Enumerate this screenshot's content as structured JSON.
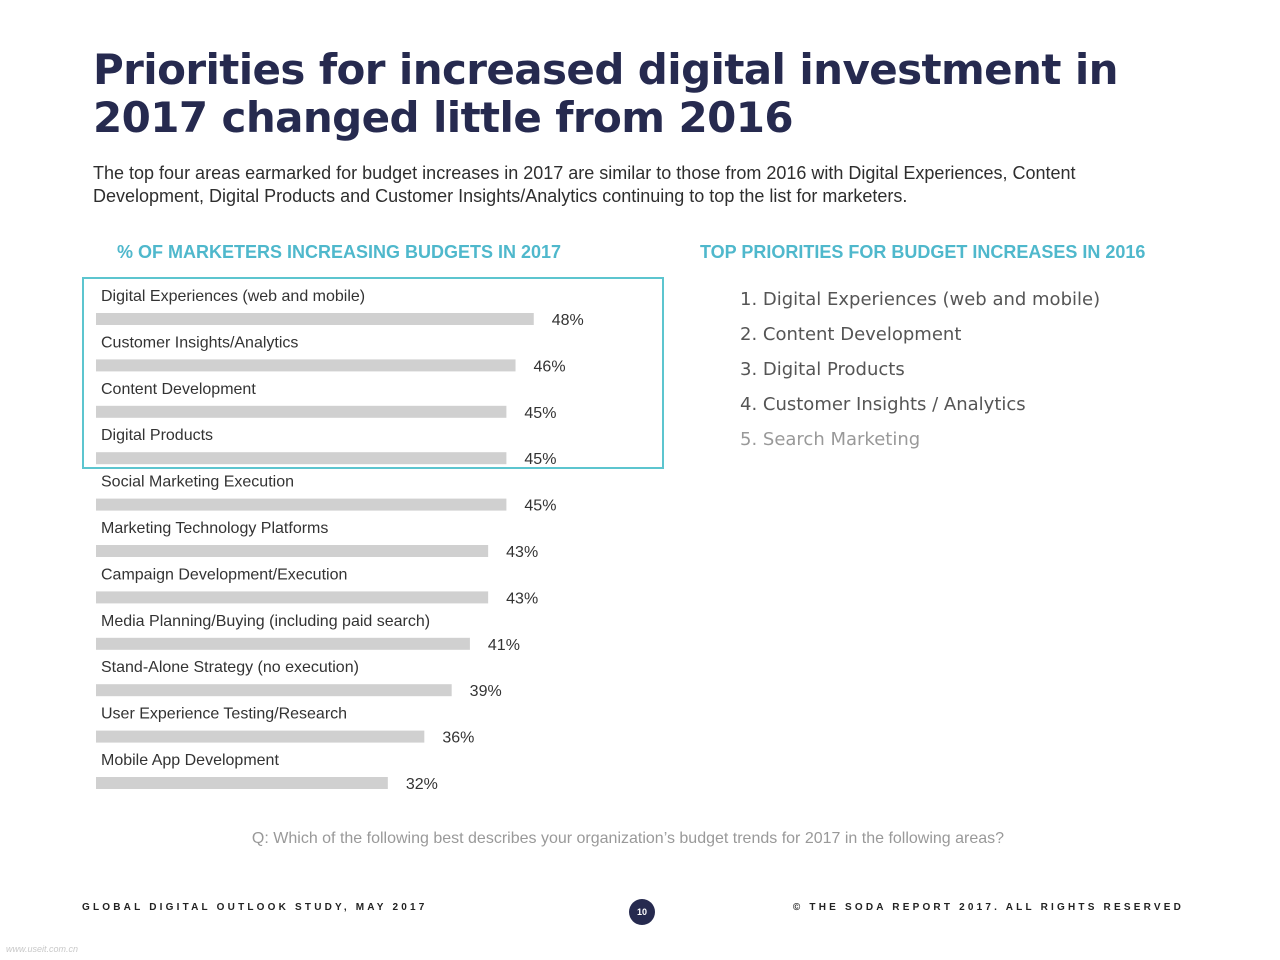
{
  "header": {
    "title_line1": "Priorities for increased digital investment in",
    "title_line2": "2017 changed little from 2016",
    "subtitle": "The top four areas earmarked for budget increases in 2017 are similar to those from 2016 with Digital Experiences, Content Development, Digital Products and Customer Insights/Analytics continuing to top the list for marketers."
  },
  "left_section": {
    "heading": "% OF MARKETERS INCREASING BUDGETS IN 2017"
  },
  "right_section": {
    "heading": "TOP PRIORITIES FOR BUDGET INCREASES IN 2016",
    "items": [
      "1. Digital Experiences (web and mobile)",
      "2. Content Development",
      "3. Digital Products",
      "4. Customer Insights / Analytics",
      "5. Search Marketing"
    ]
  },
  "chart_data": {
    "type": "bar",
    "orientation": "horizontal",
    "title": "% OF MARKETERS INCREASING BUDGETS IN 2017",
    "categories": [
      "Digital Experiences (web and mobile)",
      "Customer Insights/Analytics",
      "Content Development",
      "Digital Products",
      "Social Marketing Execution",
      "Marketing Technology Platforms",
      "Campaign Development/Execution",
      "Media Planning/Buying (including paid search)",
      "Stand-Alone Strategy (no execution)",
      "User Experience Testing/Research",
      "Mobile App Development"
    ],
    "values": [
      48,
      46,
      45,
      45,
      45,
      43,
      43,
      41,
      39,
      36,
      32
    ],
    "value_labels": [
      "48%",
      "46%",
      "45%",
      "45%",
      "45%",
      "43%",
      "43%",
      "41%",
      "39%",
      "36%",
      "32%"
    ],
    "unit": "%",
    "highlighted_count": 4,
    "grid": false,
    "bar_color": "#d0d0d0",
    "highlight_border_color": "#5cc5cf"
  },
  "question": "Q: Which of the following best describes your organization’s budget trends for 2017 in the following areas?",
  "footer": {
    "left": "GLOBAL DIGITAL OUTLOOK STUDY, MAY 2017",
    "page_number": "10",
    "right": "© THE SODA REPORT 2017. ALL RIGHTS RESERVED"
  },
  "watermark": "www.useit.com.cn",
  "colors": {
    "title": "#262a4f",
    "accent": "#4fb8cc",
    "bar": "#d0d0d0"
  }
}
